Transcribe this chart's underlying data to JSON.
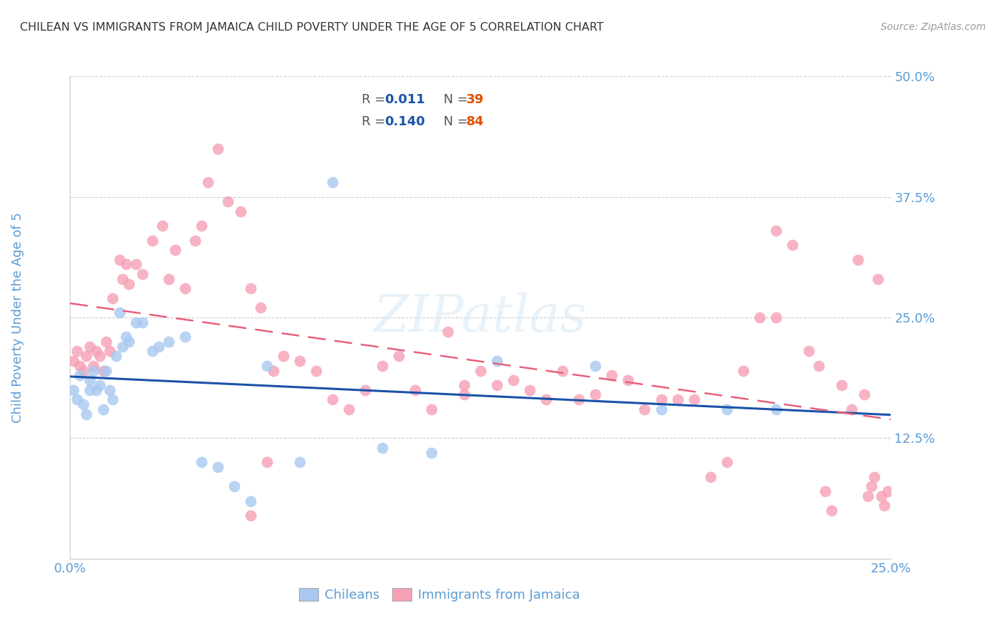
{
  "title": "CHILEAN VS IMMIGRANTS FROM JAMAICA CHILD POVERTY UNDER THE AGE OF 5 CORRELATION CHART",
  "source": "Source: ZipAtlas.com",
  "ylabel": "Child Poverty Under the Age of 5",
  "xlabel_chileans": "Chileans",
  "xlabel_jamaica": "Immigrants from Jamaica",
  "xlim": [
    0.0,
    0.25
  ],
  "ylim": [
    0.0,
    0.5
  ],
  "x_tick_positions": [
    0.0,
    0.05,
    0.1,
    0.15,
    0.2,
    0.25
  ],
  "x_tick_labels": [
    "0.0%",
    "",
    "",
    "",
    "",
    "25.0%"
  ],
  "y_tick_positions": [
    0.0,
    0.125,
    0.25,
    0.375,
    0.5
  ],
  "y_tick_labels": [
    "",
    "12.5%",
    "25.0%",
    "37.5%",
    "50.0%"
  ],
  "legend_R1": "0.011",
  "legend_N1": "39",
  "legend_R2": "0.140",
  "legend_N2": "84",
  "color_chilean": "#A8C8F0",
  "color_jamaica": "#F5A0B5",
  "color_line_chilean": "#1A52A8",
  "color_line_jamaica": "#E8607A",
  "color_ticks": "#5B9BD5",
  "color_title": "#404040",
  "color_source": "#999999",
  "watermark": "ZIPatlas",
  "chilean_x": [
    0.001,
    0.002,
    0.003,
    0.004,
    0.005,
    0.006,
    0.006,
    0.007,
    0.008,
    0.009,
    0.01,
    0.011,
    0.012,
    0.013,
    0.014,
    0.015,
    0.016,
    0.017,
    0.018,
    0.02,
    0.022,
    0.025,
    0.027,
    0.03,
    0.035,
    0.04,
    0.045,
    0.05,
    0.055,
    0.06,
    0.07,
    0.08,
    0.095,
    0.11,
    0.13,
    0.16,
    0.18,
    0.2,
    0.215
  ],
  "chilean_y": [
    0.175,
    0.165,
    0.19,
    0.16,
    0.15,
    0.185,
    0.175,
    0.195,
    0.175,
    0.18,
    0.155,
    0.195,
    0.175,
    0.165,
    0.21,
    0.255,
    0.22,
    0.23,
    0.225,
    0.245,
    0.245,
    0.215,
    0.22,
    0.225,
    0.23,
    0.1,
    0.095,
    0.075,
    0.06,
    0.2,
    0.1,
    0.39,
    0.115,
    0.11,
    0.205,
    0.2,
    0.155,
    0.155,
    0.155
  ],
  "jamaica_x": [
    0.001,
    0.002,
    0.003,
    0.004,
    0.005,
    0.006,
    0.007,
    0.008,
    0.009,
    0.01,
    0.011,
    0.012,
    0.013,
    0.015,
    0.016,
    0.017,
    0.018,
    0.02,
    0.022,
    0.025,
    0.028,
    0.03,
    0.032,
    0.035,
    0.038,
    0.04,
    0.042,
    0.045,
    0.048,
    0.052,
    0.055,
    0.058,
    0.062,
    0.065,
    0.07,
    0.075,
    0.08,
    0.085,
    0.09,
    0.095,
    0.1,
    0.105,
    0.11,
    0.115,
    0.12,
    0.125,
    0.13,
    0.135,
    0.14,
    0.145,
    0.15,
    0.155,
    0.16,
    0.165,
    0.17,
    0.175,
    0.18,
    0.185,
    0.19,
    0.195,
    0.2,
    0.205,
    0.21,
    0.215,
    0.22,
    0.225,
    0.228,
    0.23,
    0.232,
    0.235,
    0.238,
    0.24,
    0.242,
    0.243,
    0.244,
    0.245,
    0.246,
    0.247,
    0.248,
    0.249,
    0.12,
    0.06,
    0.055,
    0.215
  ],
  "jamaica_y": [
    0.205,
    0.215,
    0.2,
    0.195,
    0.21,
    0.22,
    0.2,
    0.215,
    0.21,
    0.195,
    0.225,
    0.215,
    0.27,
    0.31,
    0.29,
    0.305,
    0.285,
    0.305,
    0.295,
    0.33,
    0.345,
    0.29,
    0.32,
    0.28,
    0.33,
    0.345,
    0.39,
    0.425,
    0.37,
    0.36,
    0.28,
    0.26,
    0.195,
    0.21,
    0.205,
    0.195,
    0.165,
    0.155,
    0.175,
    0.2,
    0.21,
    0.175,
    0.155,
    0.235,
    0.18,
    0.195,
    0.18,
    0.185,
    0.175,
    0.165,
    0.195,
    0.165,
    0.17,
    0.19,
    0.185,
    0.155,
    0.165,
    0.165,
    0.165,
    0.085,
    0.1,
    0.195,
    0.25,
    0.34,
    0.325,
    0.215,
    0.2,
    0.07,
    0.05,
    0.18,
    0.155,
    0.31,
    0.17,
    0.065,
    0.075,
    0.085,
    0.29,
    0.065,
    0.055,
    0.07,
    0.17,
    0.1,
    0.045,
    0.25
  ]
}
